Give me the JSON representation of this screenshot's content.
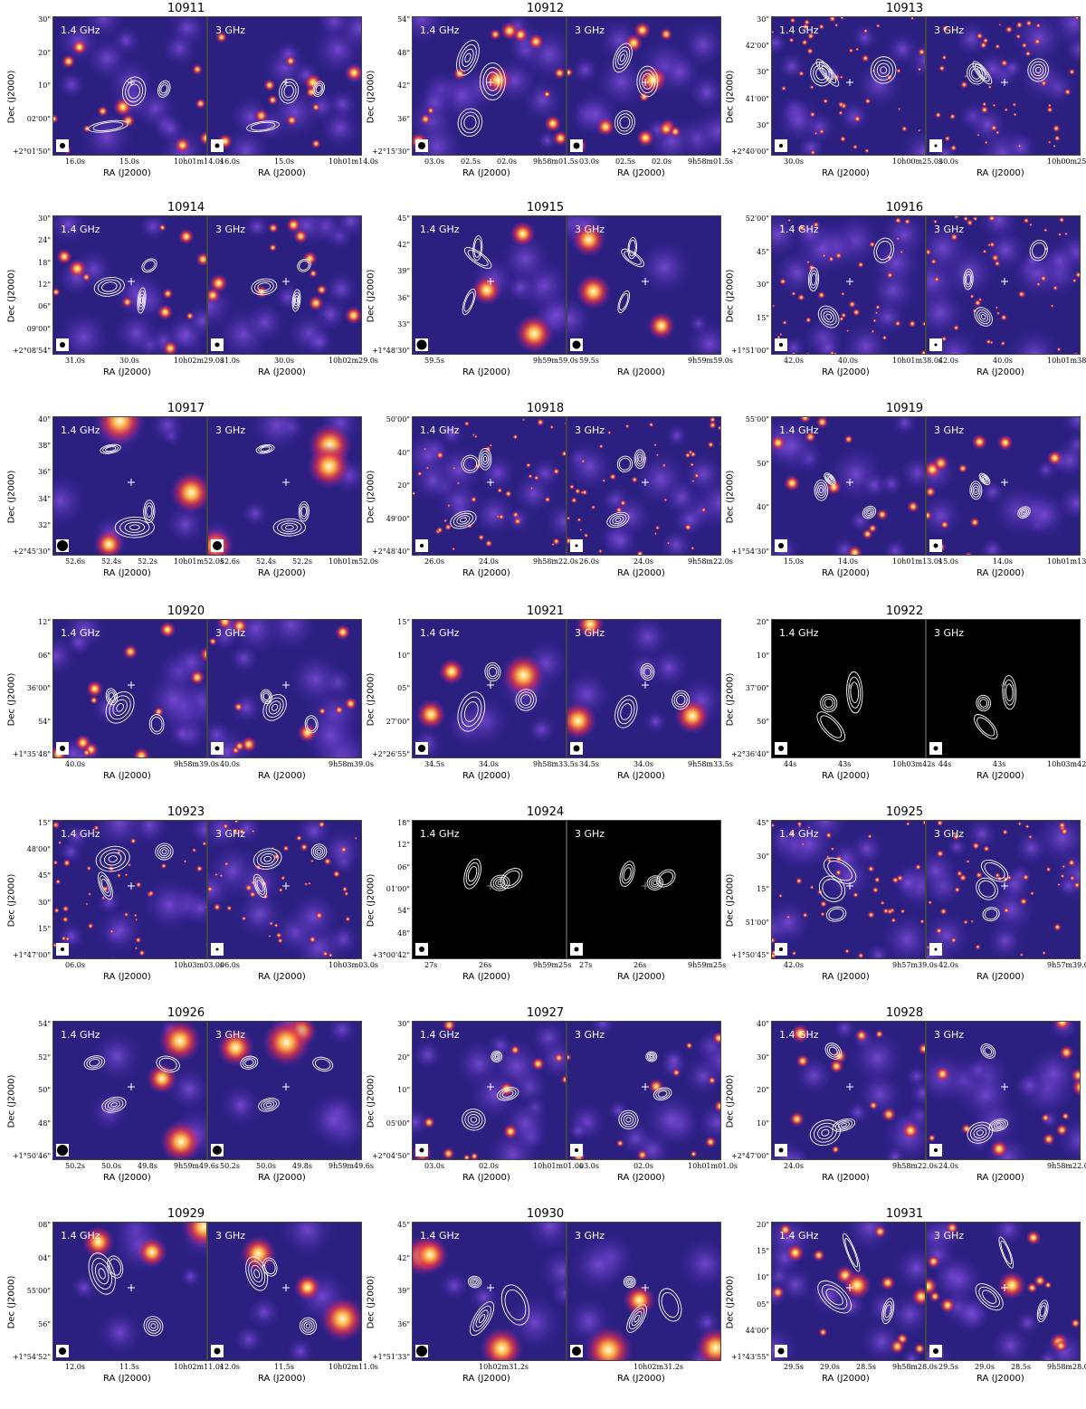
{
  "ylabel": "Dec (J2000)",
  "xlabel": "RA (J2000)",
  "band_left": "1.4 GHz",
  "band_right": "3 GHz",
  "panels": [
    {
      "id": "10911",
      "yticks": [
        "30\"",
        "20\"",
        "10\"",
        "02'00\"",
        "+2°01'50\""
      ],
      "xticks": [
        "16.0s",
        "15.0s",
        "10h01m14.0s"
      ],
      "style": "stars",
      "beam": 0.5
    },
    {
      "id": "10912",
      "yticks": [
        "54\"",
        "48\"",
        "42\"",
        "36\"",
        "+2°15'30\""
      ],
      "xticks": [
        "03.0s",
        "02.5s",
        "02.0s",
        "9h58m01.5s"
      ],
      "style": "bright",
      "beam": 0.7
    },
    {
      "id": "10913",
      "yticks": [
        "30\"",
        "42'00\"",
        "30\"",
        "41'00\"",
        "30\"",
        "+2°40'00\""
      ],
      "xticks": [
        "30.0s",
        "10h00m25.0s"
      ],
      "style": "dense",
      "beam": 0.3
    },
    {
      "id": "10914",
      "yticks": [
        "30\"",
        "24\"",
        "18\"",
        "12\"",
        "06\"",
        "09'00\"",
        "+2°08'54\""
      ],
      "xticks": [
        "31.0s",
        "30.0s",
        "10h02m29.0s"
      ],
      "style": "stars",
      "beam": 0.5
    },
    {
      "id": "10915",
      "yticks": [
        "45\"",
        "42\"",
        "39\"",
        "36\"",
        "33\"",
        "+1°48'30\""
      ],
      "xticks": [
        "59.5s",
        "9h59m59.0s"
      ],
      "style": "soft",
      "beam": 0.95
    },
    {
      "id": "10916",
      "yticks": [
        "52'00\"",
        "45\"",
        "30\"",
        "15\"",
        "+1°51'00\""
      ],
      "xticks": [
        "42.0s",
        "40.0s",
        "10h01m38.0s"
      ],
      "style": "dense",
      "beam": 0.3
    },
    {
      "id": "10917",
      "yticks": [
        "40\"",
        "38\"",
        "36\"",
        "34\"",
        "32\"",
        "+2°45'30\""
      ],
      "xticks": [
        "52.6s",
        "52.4s",
        "52.2s",
        "10h01m52.0s"
      ],
      "style": "soft",
      "beam": 1.0
    },
    {
      "id": "10918",
      "yticks": [
        "50'00\"",
        "40\"",
        "20\"",
        "49'00\"",
        "+2°48'40\""
      ],
      "xticks": [
        "26.0s",
        "24.0s",
        "9h58m22.0s"
      ],
      "style": "dense",
      "beam": 0.3
    },
    {
      "id": "10919",
      "yticks": [
        "55'00\"",
        "50\"",
        "40\"",
        "+1°54'30\""
      ],
      "xticks": [
        "15.0s",
        "14.0s",
        "10h01m13.0s"
      ],
      "style": "stars",
      "beam": 0.5
    },
    {
      "id": "10920",
      "yticks": [
        "12\"",
        "06\"",
        "36'00\"",
        "54\"",
        "+1°35'48\""
      ],
      "xticks": [
        "40.0s",
        "9h58m39.0s"
      ],
      "style": "stars",
      "beam": 0.5
    },
    {
      "id": "10921",
      "yticks": [
        "15\"",
        "10\"",
        "05\"",
        "27'00\"",
        "+2°26'55\""
      ],
      "xticks": [
        "34.5s",
        "34.0s",
        "9h58m33.5s"
      ],
      "style": "soft",
      "beam": 0.7
    },
    {
      "id": "10922",
      "yticks": [
        "20\"",
        "10\"",
        "37'00\"",
        "50\"",
        "+2°36'40\""
      ],
      "xticks": [
        "44s",
        "43s",
        "10h03m42s"
      ],
      "style": "black",
      "beam": 0.5
    },
    {
      "id": "10923",
      "yticks": [
        "15\"",
        "48'00\"",
        "45\"",
        "30\"",
        "15\"",
        "+1°47'00\""
      ],
      "xticks": [
        "06.0s",
        "10h03m03.0s"
      ],
      "style": "dense",
      "beam": 0.3
    },
    {
      "id": "10924",
      "yticks": [
        "18\"",
        "12\"",
        "06\"",
        "01'00\"",
        "54\"",
        "48\"",
        "+3°00'42\""
      ],
      "xticks": [
        "27s",
        "26s",
        "9h59m25s"
      ],
      "style": "black",
      "beam": 0.5
    },
    {
      "id": "10925",
      "yticks": [
        "45\"",
        "30\"",
        "15\"",
        "51'00\"",
        "+1°50'45\""
      ],
      "xticks": [
        "42.0s",
        "9h57m39.0s"
      ],
      "style": "dense",
      "beam": 0.3
    },
    {
      "id": "10926",
      "yticks": [
        "54\"",
        "52\"",
        "50\"",
        "48\"",
        "+1°50'46\""
      ],
      "xticks": [
        "50.2s",
        "50.0s",
        "49.8s",
        "9h59m49.6s"
      ],
      "style": "soft",
      "beam": 1.0
    },
    {
      "id": "10927",
      "yticks": [
        "30\"",
        "20\"",
        "10\"",
        "05'00\"",
        "+2°04'50\""
      ],
      "xticks": [
        "03.0s",
        "02.0s",
        "10h01m01.0s"
      ],
      "style": "stars",
      "beam": 0.4
    },
    {
      "id": "10928",
      "yticks": [
        "40\"",
        "30\"",
        "20\"",
        "10\"",
        "+2°47'00\""
      ],
      "xticks": [
        "24.0s",
        "9h58m22.0s"
      ],
      "style": "stars",
      "beam": 0.4
    },
    {
      "id": "10929",
      "yticks": [
        "08\"",
        "04\"",
        "55'00\"",
        "56\"",
        "+1°54'52\""
      ],
      "xticks": [
        "12.0s",
        "11.5s",
        "10h02m11.0s"
      ],
      "style": "soft",
      "beam": 0.7
    },
    {
      "id": "10930",
      "yticks": [
        "45\"",
        "42\"",
        "39\"",
        "36\"",
        "+1°51'33\""
      ],
      "xticks": [
        "10h02m31.2s"
      ],
      "style": "soft",
      "beam": 1.0
    },
    {
      "id": "10931",
      "yticks": [
        "20\"",
        "15\"",
        "10\"",
        "05\"",
        "44'00\"",
        "+1°43'55\""
      ],
      "xticks": [
        "29.5s",
        "29.0s",
        "28.5s",
        "9h58m28.0s"
      ],
      "style": "bright",
      "beam": 0.6
    }
  ]
}
